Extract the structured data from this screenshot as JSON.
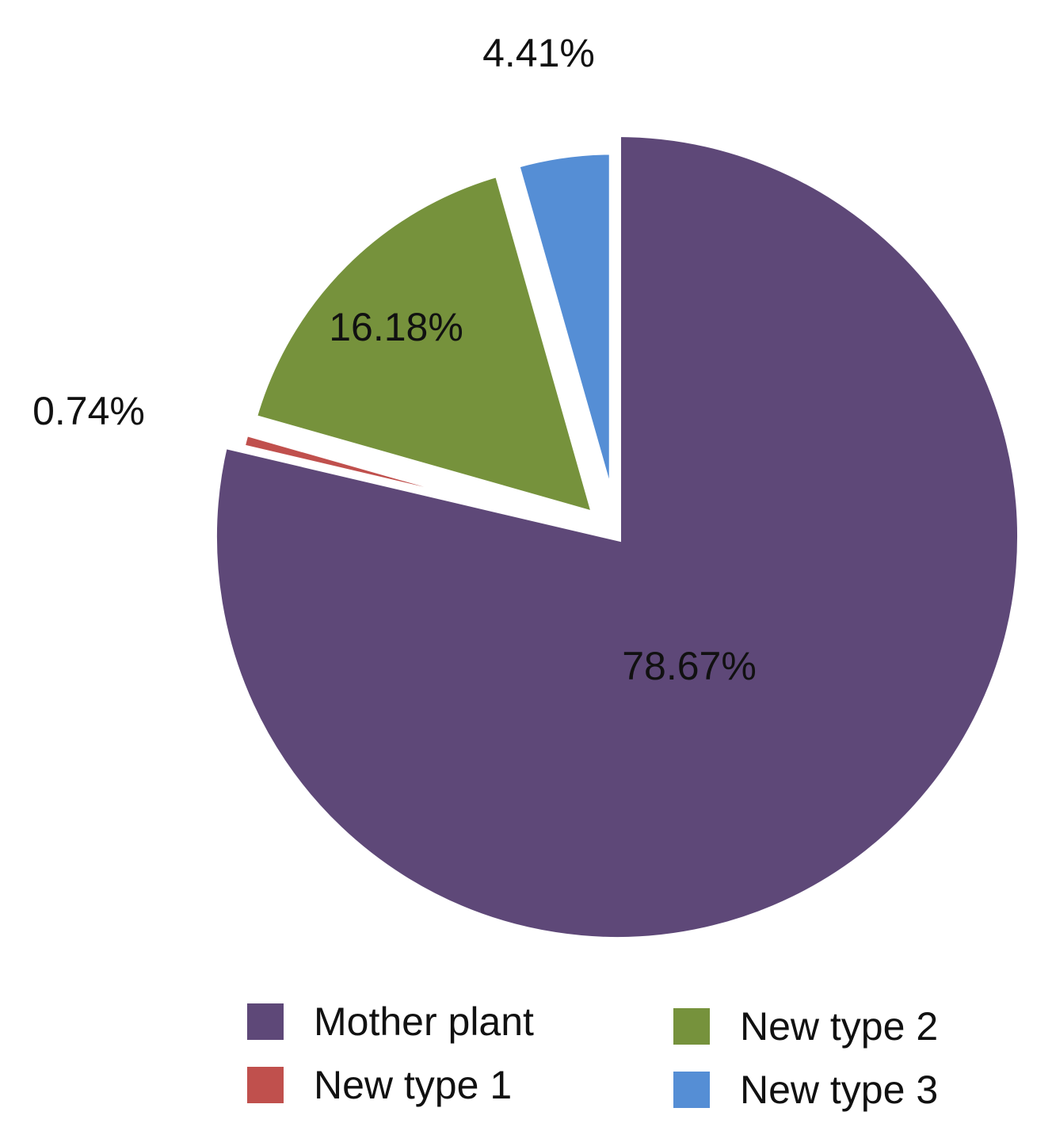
{
  "chart_data": {
    "type": "pie",
    "categories": [
      "Mother plant",
      "New type 1",
      "New type 2",
      "New type 3"
    ],
    "values": [
      78.67,
      0.74,
      16.18,
      4.41
    ],
    "labels": [
      "78.67%",
      "0.74%",
      "16.18%",
      "4.41%"
    ],
    "colors": [
      "#5e4878",
      "#c0504d",
      "#76923c",
      "#558ed5"
    ],
    "exploded": [
      false,
      true,
      true,
      true
    ],
    "start_angle": "12 o'clock",
    "direction": "clockwise",
    "legend": {
      "placement": "bottom",
      "items": [
        {
          "name": "Mother plant",
          "color": "#5e4878"
        },
        {
          "name": "New type 1",
          "color": "#c0504d"
        },
        {
          "name": "New type 2",
          "color": "#76923c"
        },
        {
          "name": "New type 3",
          "color": "#558ed5"
        }
      ]
    },
    "title": "",
    "xlabel": "",
    "ylabel": ""
  }
}
